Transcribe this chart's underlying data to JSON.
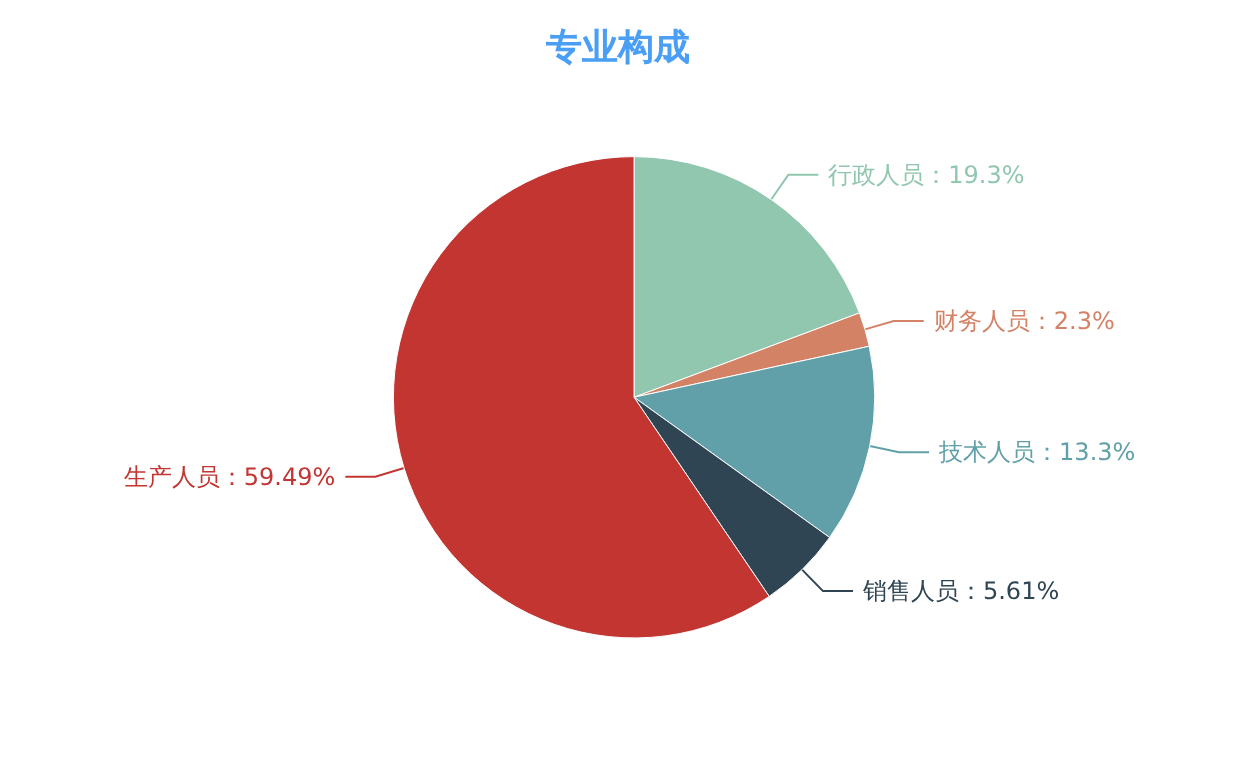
{
  "chart_data": {
    "type": "pie",
    "title": "专业构成",
    "categories": [
      "行政人员",
      "财务人员",
      "技术人员",
      "销售人员",
      "生产人员"
    ],
    "values": [
      19.3,
      2.3,
      13.3,
      5.61,
      59.49
    ],
    "colors": [
      "#91c7ae",
      "#d48265",
      "#61a0a8",
      "#2f4554",
      "#c23531"
    ],
    "value_labels": [
      "：19.3%",
      "：2.3%",
      "：13.3%",
      "：5.61%",
      "：59.49%"
    ],
    "legend": false
  }
}
